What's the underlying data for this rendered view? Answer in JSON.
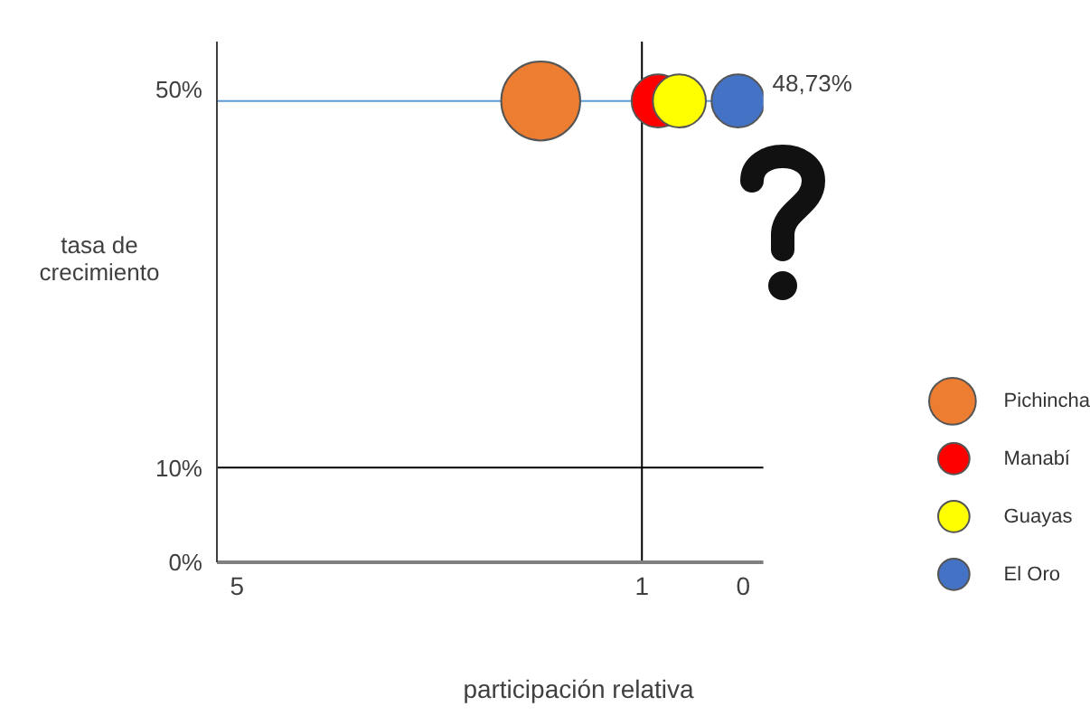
{
  "chart_data": {
    "type": "bubble",
    "xlabel": "participación relativa",
    "ylabel": "tasa de crecimiento",
    "xlim": [
      5.2,
      -0.2
    ],
    "xticks": [
      5,
      1,
      0
    ],
    "ylim": [
      0,
      55
    ],
    "yticks": [
      {
        "value": 0,
        "label": "0%"
      },
      {
        "value": 10,
        "label": "10%"
      },
      {
        "value": 50,
        "label": "50%"
      }
    ],
    "legend": "right",
    "series": [
      {
        "name": "Pichincha",
        "color": "#ed7d31",
        "x": [
          2
        ],
        "values": [
          48.73
        ],
        "sizes": [
          1
        ]
      },
      {
        "name": "Manabí",
        "color": "#ff0000",
        "x": [
          0.84
        ],
        "values": [
          48.73
        ],
        "sizes": [
          0.45
        ]
      },
      {
        "name": "Guayas",
        "color": "#ffff00",
        "x": [
          0.63
        ],
        "values": [
          48.73
        ],
        "sizes": [
          0.45
        ]
      },
      {
        "name": "El Oro",
        "color": "#4472c4",
        "x": [
          0.05
        ],
        "values": [
          48.73
        ],
        "sizes": [
          0.45
        ]
      }
    ],
    "ref_lines": [
      {
        "axis": "x",
        "value": 1,
        "color": "#000000"
      },
      {
        "axis": "y",
        "value": 10,
        "color": "#000000"
      },
      {
        "axis": "y",
        "value": 48.73,
        "label": "48,73%",
        "color": "#5b9bd5"
      }
    ]
  }
}
